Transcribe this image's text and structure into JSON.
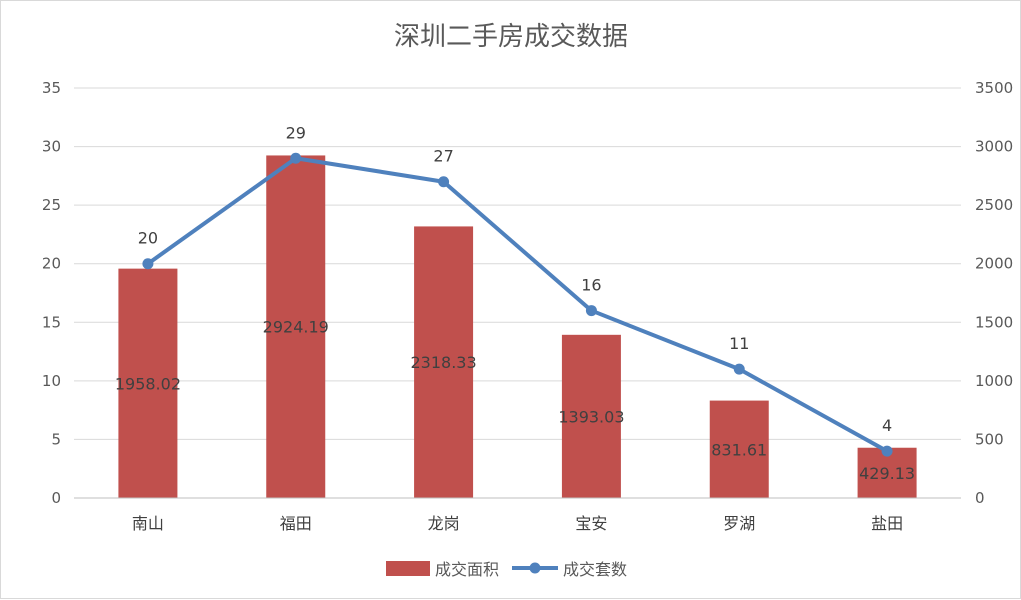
{
  "chart_data": {
    "type": "bar",
    "title": "深圳二手房成交数据",
    "categories": [
      "南山",
      "福田",
      "龙岗",
      "宝安",
      "罗湖",
      "盐田"
    ],
    "series": [
      {
        "name": "成交面积",
        "type": "bar",
        "axis": "left",
        "values": [
          1958.02,
          2924.19,
          2318.33,
          1393.03,
          831.61,
          429.13
        ],
        "data_labels": [
          "1958.02",
          "2924.19",
          "2318.33",
          "1393.03",
          "831.61",
          "429.13"
        ],
        "color": "#c0504d"
      },
      {
        "name": "成交套数",
        "type": "line",
        "axis": "right",
        "values": [
          20,
          29,
          27,
          16,
          11,
          4
        ],
        "data_labels": [
          "20",
          "29",
          "27",
          "16",
          "11",
          "4"
        ],
        "color": "#4f81bd"
      }
    ],
    "left_axis": {
      "min": 0,
      "max": 35,
      "ticks": [
        "0",
        "5",
        "10",
        "15",
        "20",
        "25",
        "30",
        "35"
      ]
    },
    "right_axis": {
      "min": 0,
      "max": 3500,
      "ticks": [
        "0",
        "500",
        "1000",
        "1500",
        "2000",
        "2500",
        "3000",
        "3500"
      ]
    },
    "grid": true,
    "legend_position": "bottom"
  }
}
